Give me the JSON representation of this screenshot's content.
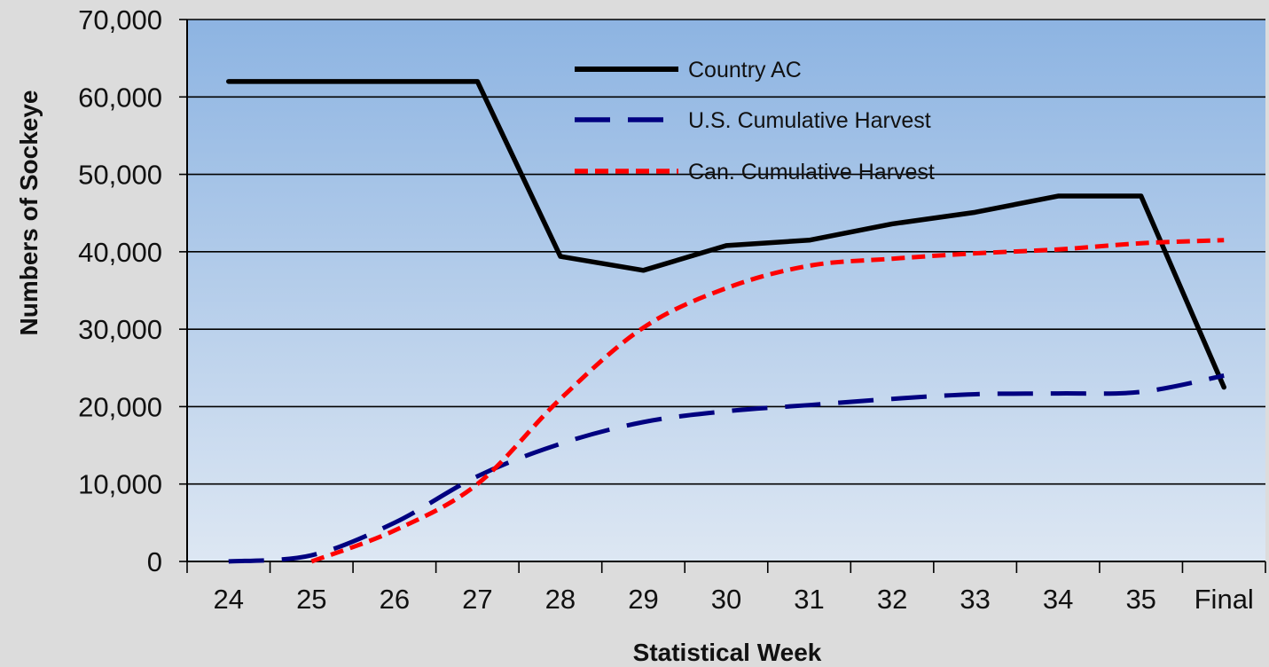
{
  "chart_data": {
    "type": "line",
    "xlabel": "Statistical Week",
    "ylabel": "Numbers of Sockeye",
    "categories": [
      "24",
      "25",
      "26",
      "27",
      "28",
      "29",
      "30",
      "31",
      "32",
      "33",
      "34",
      "35",
      "Final"
    ],
    "ylim": [
      0,
      70000
    ],
    "yticks": [
      0,
      10000,
      20000,
      30000,
      40000,
      50000,
      60000,
      70000
    ],
    "ytick_labels": [
      "0",
      "10,000",
      "20,000",
      "30,000",
      "40,000",
      "50,000",
      "60,000",
      "70,000"
    ],
    "grid": "horizontal",
    "legend_position": "top-center",
    "background_gradient": [
      "#8db4e2",
      "#dde7f3"
    ],
    "series": [
      {
        "name": "Country AC",
        "style": "solid",
        "color": "#000000",
        "values": [
          62000,
          62000,
          62000,
          62000,
          39400,
          37600,
          40800,
          41500,
          43600,
          45100,
          47200,
          47200,
          22500
        ]
      },
      {
        "name": "U.S. Cumulative Harvest",
        "style": "long-dash",
        "color": "#000080",
        "values": [
          0,
          800,
          5000,
          11000,
          15200,
          18000,
          19400,
          20200,
          21000,
          21600,
          21700,
          21900,
          24000
        ]
      },
      {
        "name": "Can. Cumulative Harvest",
        "style": "short-dash",
        "color": "#ff0000",
        "values": [
          null,
          0,
          4000,
          10000,
          21000,
          30200,
          35300,
          38200,
          39100,
          39800,
          40300,
          41100,
          41500
        ]
      }
    ]
  }
}
